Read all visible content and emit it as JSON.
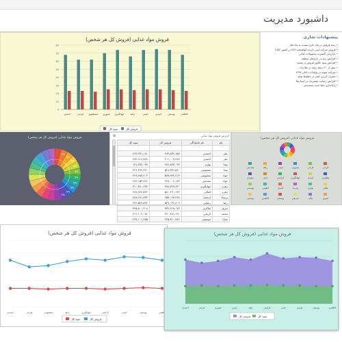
{
  "header": {
    "title": "داشبورد مدیریت"
  },
  "bar_panel": {
    "title": "فروش مواد غذایی (فروش کل هر شخص)",
    "legend": [
      "سود کل",
      "فروش کل"
    ],
    "colors": {
      "sales": "#4e8a85",
      "profit": "#b84a4a"
    }
  },
  "info_panel": {
    "title": "پیشنهادات تجاری",
    "items": [
      "رشد فروش در ماه جاری نسبت به ماه قبل",
      "فروش شرکت لبنی دارنده گواهینامه ISO در کشور کانادا",
      "بازاریابی گسترده محصولات غذایی",
      "افزایش رتبه در بازارهای منطقه",
      "افزایش سود خالص فروش در شعب",
      "بیش از ۳۰ درصد رشد در صادرات",
      "شرکت نمونه در تولیدات داخلی ۱۳۹۷",
      "مصرف انرژی کمتر در خطوط تولید",
      "افزایش رضایت مشتریان در استان‌ها",
      "راه‌اندازی خط جدید بسته‌بندی"
    ]
  },
  "donut_panel": {
    "title": "فروش مواد غذایی (فروش کل هر شخص)",
    "slice_label": "5%"
  },
  "table_panel": {
    "caption": "گزارش فروش مواد غذایی",
    "headers": [
      "نام",
      "نام خانوادگی",
      "فروش کل",
      "سود کل"
    ],
    "rows": [
      [
        "علی",
        "احمدی",
        "۲۷۳,۸۳۲,۱۵۷",
        "۲۶۳,۲۳۱,۱۸۱"
      ],
      [
        "علی",
        "احمدی",
        "۳۰۲,۰۰۷,۴۸۳",
        "۲۷۳,۹۱۹,۷۲۸"
      ],
      [
        "نیما",
        "بهاری",
        "۶۲۲,۸۴۳,۰۲۳",
        "۱۳۱,۲۷۲,۰۳۸"
      ],
      [
        "نیما",
        "معصومی",
        "۵۲۸,۳۳۶,۵۶۰",
        "۲۴۶,۴۷۴,۷۲۱"
      ],
      [
        "جواد",
        "معصومی",
        "۵۸۷,۹۴۲,۲۱۳",
        "۲۲۹,۷۸۷,۲۰۳"
      ],
      [
        "جواد",
        "مقدسی",
        "۲۷۷,۰۰۶,۱۸۳",
        "۲۸۴,۱۵۳,۷۶۶"
      ],
      [
        "زهره",
        "جهانگیری",
        "۴۹۸,۷۲۷,۶۳۰",
        "۳۱۰,۳۸۰,۶۳۴"
      ],
      [
        "زهره",
        "کمالی",
        "۵۸۰,۲۹۰,۱۷۴",
        "۲۸۷,۹۶۴,۵۲۴"
      ],
      [
        "پریسا",
        "ارجمند",
        "۲۵۹,۰۶۷,۲۴۸",
        "۲۸۸,۶۸۱,۷۳۳"
      ],
      [
        "رضا",
        "رضایی",
        "۵۴۷,۰۳۶,۸۰۹",
        "۲۹۶,۵۴۴,۵۳۲"
      ],
      [
        "مریم",
        "شاکری",
        "۳۳۶,۲۱۸,۰۷۶",
        "۲۲۵,۸۰۰,۳۰۸"
      ],
      [
        "محمد",
        "کریمی",
        "۳۷۰,۴۸۱,۱۴۱",
        "۲۶۱,۱۰۴,۰۸۲"
      ],
      [
        "سارا",
        "موسوی",
        "۲۲۵,۳۱۰,۷۸۶",
        "۲۷۷,۱۰۱,۲۸۵"
      ]
    ]
  },
  "legend_panel": {
    "title": "فروش مواد غذایی (فروش کل هر شخص)",
    "labels": [
      "فرحی",
      "فرخی",
      "صبوری",
      "امینی",
      "زاهد",
      "مقدسی",
      "مظفری",
      "امیدی",
      "جهانگیری",
      "کرامتی",
      "جنتی",
      "سعیدی",
      "ملکی",
      "بهاری",
      "پارسا",
      "اکبری",
      "لاهوتی",
      "یوسفی",
      "امیری",
      "بیگی",
      "شریفی",
      "یوسفی",
      "کاظمی",
      "پوستی"
    ]
  },
  "line_panel": {
    "title": "فروش مواد غذایی (فروش کل هر شخص)",
    "legend": [
      "فروش کل",
      "سود کل"
    ],
    "colors": {
      "sales": "#3aa0d0",
      "profit": "#d64b4b"
    },
    "categories": [
      "احمدی",
      "فرخی",
      "معصومی",
      "زاهد",
      "جهانگیری",
      "کرامتی",
      "امینی",
      "یوسفی",
      "کاظمی"
    ]
  },
  "area_panel": {
    "title": "فروش مواد غذایی (فروش کل هر شخص)",
    "legend": [
      "فروش کل",
      "سود کل"
    ],
    "colors": {
      "sales": "#9b8be0",
      "profit": "#6dbf7a"
    },
    "categories": [
      "احمدی",
      "فرخی",
      "صبوری",
      "امینی",
      "زاهد",
      "کرامتی",
      "جنتی",
      "امیدی",
      "یوسفی",
      "کاظمی"
    ]
  },
  "chart_data": [
    {
      "type": "bar",
      "title": "فروش مواد غذایی (فروش کل هر شخص)",
      "categories": [
        "احمدی",
        "فرخی",
        "مصطفوی",
        "صبوری",
        "جهانگیری",
        "زاهد",
        "امینی",
        "امیدی",
        "یوسفی",
        "کاظمی"
      ],
      "series": [
        {
          "name": "فروش کل",
          "values": [
            68,
            62,
            62,
            70,
            74,
            66,
            74,
            75,
            74,
            68
          ]
        },
        {
          "name": "سود کل",
          "values": [
            23,
            23,
            22,
            25,
            25,
            24,
            25,
            25,
            24,
            23
          ]
        }
      ],
      "ylim": [
        0,
        80
      ]
    },
    {
      "type": "line",
      "title": "فروش مواد غذایی (فروش کل هر شخص)",
      "categories": [
        "احمدی",
        "فرخی",
        "معصومی",
        "زاهد",
        "جهانگیری",
        "کرامتی",
        "امینی",
        "یوسفی",
        "کاظمی"
      ],
      "series": [
        {
          "name": "فروش کل",
          "values": [
            70,
            60,
            62,
            68,
            72,
            70,
            75,
            74,
            70
          ]
        },
        {
          "name": "سود کل",
          "values": [
            28,
            28,
            27,
            28,
            28,
            27,
            28,
            29,
            28
          ]
        }
      ],
      "ylim": [
        0,
        100
      ]
    },
    {
      "type": "area",
      "title": "فروش مواد غذایی (فروش کل هر شخص)",
      "categories": [
        "احمدی",
        "فرخی",
        "صبوری",
        "امینی",
        "زاهد",
        "کرامتی",
        "جنتی",
        "امیدی",
        "یوسفی",
        "کاظمی"
      ],
      "series": [
        {
          "name": "فروش کل",
          "values": [
            70,
            65,
            68,
            74,
            70,
            80,
            72,
            74,
            73,
            68
          ]
        },
        {
          "name": "سود کل",
          "values": [
            28,
            29,
            28,
            29,
            29,
            30,
            29,
            29,
            28,
            28
          ]
        }
      ],
      "ylim": [
        0,
        100
      ]
    }
  ]
}
